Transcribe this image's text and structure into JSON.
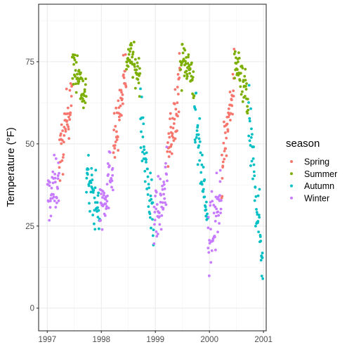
{
  "chart_data": {
    "type": "scatter",
    "ylabel": "Temperature (°F)",
    "xlabel": "",
    "title": "",
    "x_range": [
      1996.84,
      2001.05
    ],
    "ylim": [
      -6.9,
      92.5
    ],
    "x_ticks": [
      1997,
      1998,
      1999,
      2000,
      2001
    ],
    "y_ticks": [
      0,
      25,
      50,
      75
    ],
    "grid": true,
    "legend": {
      "title": "season",
      "position": "right",
      "entries": [
        "Spring",
        "Summer",
        "Autumn",
        "Winter"
      ]
    },
    "colors": {
      "Spring": "#F8766D",
      "Summer": "#7CAE00",
      "Autumn": "#00BFC4",
      "Winter": "#C77CFF"
    },
    "point_density_per_day": 0.5,
    "series": [
      {
        "name": "Winter",
        "segments": [
          {
            "start": 1997.0,
            "end": 1997.22,
            "mean": [
              [
                0,
                33
              ],
              [
                0.5,
                36
              ],
              [
                1,
                40
              ]
            ],
            "spread": 8
          }
        ]
      },
      {
        "name": "Spring",
        "segments": [
          {
            "start": 1997.22,
            "end": 1997.46,
            "mean": [
              [
                0,
                44
              ],
              [
                0.5,
                55
              ],
              [
                1,
                68
              ]
            ],
            "spread": 8
          },
          {
            "start": 1998.22,
            "end": 1998.46,
            "mean": [
              [
                0,
                48
              ],
              [
                0.5,
                60
              ],
              [
                1,
                72
              ]
            ],
            "spread": 8
          },
          {
            "start": 1999.22,
            "end": 1999.46,
            "mean": [
              [
                0,
                46
              ],
              [
                0.5,
                58
              ],
              [
                1,
                70
              ]
            ],
            "spread": 8
          },
          {
            "start": 2000.22,
            "end": 2000.46,
            "mean": [
              [
                0,
                42
              ],
              [
                0.5,
                56
              ],
              [
                1,
                70
              ]
            ],
            "spread": 8
          }
        ]
      },
      {
        "name": "Summer",
        "segments": [
          {
            "start": 1997.46,
            "end": 1997.72,
            "mean": [
              [
                0,
                73
              ],
              [
                0.4,
                73
              ],
              [
                0.6,
                68
              ],
              [
                1,
                64
              ]
            ],
            "spread": 6
          },
          {
            "start": 1998.46,
            "end": 1998.72,
            "mean": [
              [
                0,
                76
              ],
              [
                0.4,
                77
              ],
              [
                0.6,
                73
              ],
              [
                1,
                71
              ]
            ],
            "spread": 5
          },
          {
            "start": 1999.46,
            "end": 1999.72,
            "mean": [
              [
                0,
                74
              ],
              [
                0.4,
                76
              ],
              [
                0.6,
                73
              ],
              [
                1,
                69
              ]
            ],
            "spread": 6
          },
          {
            "start": 2000.46,
            "end": 2000.72,
            "mean": [
              [
                0,
                72
              ],
              [
                0.4,
                73
              ],
              [
                0.6,
                70
              ],
              [
                1,
                63
              ]
            ],
            "spread": 6
          }
        ]
      },
      {
        "name": "Autumn",
        "segments": [
          {
            "start": 1997.72,
            "end": 1997.97,
            "mean": [
              [
                0,
                40
              ],
              [
                0.5,
                34
              ],
              [
                1,
                30
              ]
            ],
            "spread": 8
          },
          {
            "start": 1998.72,
            "end": 1998.97,
            "mean": [
              [
                0,
                58
              ],
              [
                0.5,
                40
              ],
              [
                1,
                22
              ]
            ],
            "spread": 9
          },
          {
            "start": 1999.72,
            "end": 1999.97,
            "mean": [
              [
                0,
                60
              ],
              [
                0.5,
                42
              ],
              [
                1,
                26
              ]
            ],
            "spread": 9
          },
          {
            "start": 2000.72,
            "end": 2000.99,
            "mean": [
              [
                0,
                58
              ],
              [
                0.5,
                35
              ],
              [
                1,
                14
              ]
            ],
            "spread": 9
          }
        ]
      },
      {
        "name": "Winter",
        "segments": [
          {
            "start": 1997.97,
            "end": 1998.22,
            "mean": [
              [
                0,
                30
              ],
              [
                0.5,
                36
              ],
              [
                1,
                44
              ]
            ],
            "spread": 8
          },
          {
            "start": 1998.97,
            "end": 1999.22,
            "mean": [
              [
                0,
                28
              ],
              [
                0.5,
                30
              ],
              [
                1,
                40
              ]
            ],
            "spread": 9
          },
          {
            "start": 1999.97,
            "end": 2000.22,
            "mean": [
              [
                0,
                20
              ],
              [
                0.5,
                26
              ],
              [
                1,
                36
              ]
            ],
            "spread": 9
          }
        ]
      }
    ]
  }
}
